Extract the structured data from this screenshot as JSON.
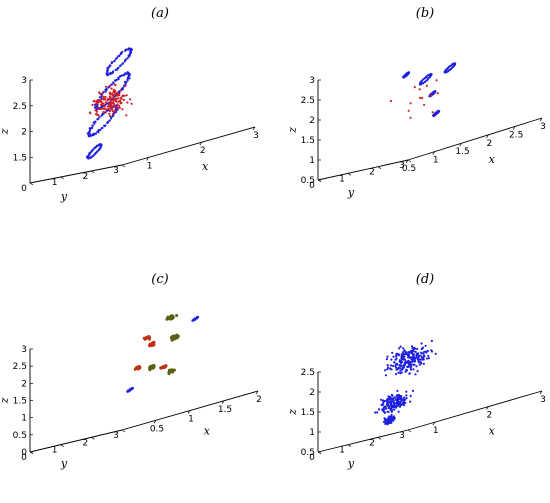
{
  "chart_data": [
    {
      "type": "scatter",
      "panel_label": "(a)",
      "projection": "3d",
      "xlabel": "x",
      "ylabel": "y",
      "zlabel": "z",
      "x_ticks": [
        1,
        2,
        3
      ],
      "y_ticks": [
        0,
        1,
        2,
        3
      ],
      "z_ticks": [
        1.5,
        2,
        2.5,
        3
      ],
      "xlim": [
        0.5,
        3
      ],
      "ylim": [
        0,
        3
      ],
      "zlim": [
        1,
        3
      ],
      "colors": {
        "blue": "#1f1fe0",
        "red": "#d42020"
      },
      "clusters": [
        {
          "x": 1.25,
          "y": 1.6,
          "z": 2.95,
          "spread": 0.22,
          "count": 70,
          "shape": "loop",
          "color": "blue"
        },
        {
          "x": 1.3,
          "y": 1.3,
          "z": 2.4,
          "spread": 0.3,
          "count": 110,
          "shape": "loop",
          "color": "blue"
        },
        {
          "x": 1.35,
          "y": 0.9,
          "z": 1.85,
          "spread": 0.25,
          "count": 90,
          "shape": "loop",
          "color": "blue"
        },
        {
          "x": 1.25,
          "y": 0.8,
          "z": 1.3,
          "spread": 0.12,
          "count": 50,
          "shape": "loop",
          "color": "blue"
        },
        {
          "x": 1.3,
          "y": 1.2,
          "z": 2.2,
          "spread": 0.4,
          "count": 140,
          "shape": "cloud",
          "color": "red"
        }
      ]
    },
    {
      "type": "scatter",
      "panel_label": "(b)",
      "projection": "3d",
      "xlabel": "x",
      "ylabel": "y",
      "zlabel": "z",
      "x_ticks": [
        0.5,
        1,
        1.5,
        2,
        2.5,
        3
      ],
      "y_ticks": [
        0,
        1,
        2,
        3
      ],
      "z_ticks": [
        0.5,
        1,
        1.5,
        2,
        2.5,
        3
      ],
      "xlim": [
        0.5,
        3
      ],
      "ylim": [
        0,
        3
      ],
      "zlim": [
        0.5,
        3
      ],
      "colors": {
        "blue": "#1f1fe0",
        "red": "#d42020"
      },
      "clusters": [
        {
          "x": 0.8,
          "y": 2.4,
          "z": 2.6,
          "spread": 0.05,
          "count": 22,
          "shape": "loop",
          "color": "blue"
        },
        {
          "x": 1.5,
          "y": 1.8,
          "z": 2.3,
          "spread": 0.1,
          "count": 30,
          "shape": "loop",
          "color": "blue"
        },
        {
          "x": 1.9,
          "y": 1.9,
          "z": 2.4,
          "spread": 0.09,
          "count": 30,
          "shape": "loop",
          "color": "blue"
        },
        {
          "x": 2.2,
          "y": 0.9,
          "z": 1.3,
          "spread": 0.05,
          "count": 18,
          "shape": "loop",
          "color": "blue"
        },
        {
          "x": 2.3,
          "y": 0.6,
          "z": 1.8,
          "spread": 0.05,
          "count": 16,
          "shape": "loop",
          "color": "blue"
        },
        {
          "x": 1.5,
          "y": 1.5,
          "z": 1.8,
          "spread": 0.7,
          "count": 14,
          "shape": "cloud",
          "color": "red"
        }
      ]
    },
    {
      "type": "scatter",
      "panel_label": "(c)",
      "projection": "3d",
      "xlabel": "x",
      "ylabel": "y",
      "zlabel": "z",
      "x_ticks": [
        0.5,
        1,
        1.5,
        2
      ],
      "y_ticks": [
        0,
        1,
        2,
        3
      ],
      "z_ticks": [
        0,
        0.5,
        1,
        1.5,
        2,
        2.5,
        3
      ],
      "xlim": [
        0,
        2
      ],
      "ylim": [
        0,
        3
      ],
      "zlim": [
        0,
        3
      ],
      "colors": {
        "blue": "#1f1fe0",
        "red": "#c03010",
        "olive": "#5a6010"
      },
      "clusters": [
        {
          "x": 0.6,
          "y": 2.5,
          "z": 2.45,
          "spread": 0.06,
          "count": 20,
          "shape": "blob",
          "color": "red"
        },
        {
          "x": 0.9,
          "y": 2.6,
          "z": 2.85,
          "spread": 0.07,
          "count": 20,
          "shape": "blob",
          "color": "olive"
        },
        {
          "x": 0.9,
          "y": 2.0,
          "z": 2.2,
          "spread": 0.07,
          "count": 20,
          "shape": "blob",
          "color": "red"
        },
        {
          "x": 1.35,
          "y": 2.4,
          "z": 2.6,
          "spread": 0.04,
          "count": 10,
          "shape": "loop",
          "color": "blue"
        },
        {
          "x": 1.4,
          "y": 1.6,
          "z": 2.2,
          "spread": 0.08,
          "count": 22,
          "shape": "blob",
          "color": "olive"
        },
        {
          "x": 1.0,
          "y": 1.3,
          "z": 1.6,
          "spread": 0.06,
          "count": 20,
          "shape": "blob",
          "color": "red"
        },
        {
          "x": 1.3,
          "y": 1.1,
          "z": 1.5,
          "spread": 0.07,
          "count": 20,
          "shape": "blob",
          "color": "olive"
        },
        {
          "x": 1.6,
          "y": 0.8,
          "z": 1.4,
          "spread": 0.06,
          "count": 18,
          "shape": "blob",
          "color": "red"
        },
        {
          "x": 1.2,
          "y": 0.6,
          "z": 1.0,
          "spread": 0.04,
          "count": 10,
          "shape": "loop",
          "color": "blue"
        },
        {
          "x": 1.8,
          "y": 0.6,
          "z": 1.2,
          "spread": 0.06,
          "count": 18,
          "shape": "blob",
          "color": "olive"
        }
      ]
    },
    {
      "type": "scatter",
      "panel_label": "(d)",
      "projection": "3d",
      "xlabel": "x",
      "ylabel": "y",
      "zlabel": "z",
      "x_ticks": [
        1,
        2,
        3
      ],
      "y_ticks": [
        0,
        1,
        2,
        3
      ],
      "z_ticks": [
        0.5,
        1,
        1.5,
        2,
        2.5
      ],
      "xlim": [
        0.5,
        3
      ],
      "ylim": [
        0,
        3
      ],
      "zlim": [
        0.5,
        2.5
      ],
      "colors": {
        "blue": "#1f1fe0"
      },
      "clusters": [
        {
          "x": 1.2,
          "y": 1.8,
          "z": 2.2,
          "spread": 0.45,
          "count": 220,
          "shape": "cloud",
          "color": "blue"
        },
        {
          "x": 1.4,
          "y": 0.9,
          "z": 1.2,
          "spread": 0.3,
          "count": 160,
          "shape": "cloud",
          "color": "blue"
        },
        {
          "x": 1.45,
          "y": 0.7,
          "z": 0.8,
          "spread": 0.12,
          "count": 90,
          "shape": "cloud",
          "color": "blue"
        }
      ]
    }
  ]
}
